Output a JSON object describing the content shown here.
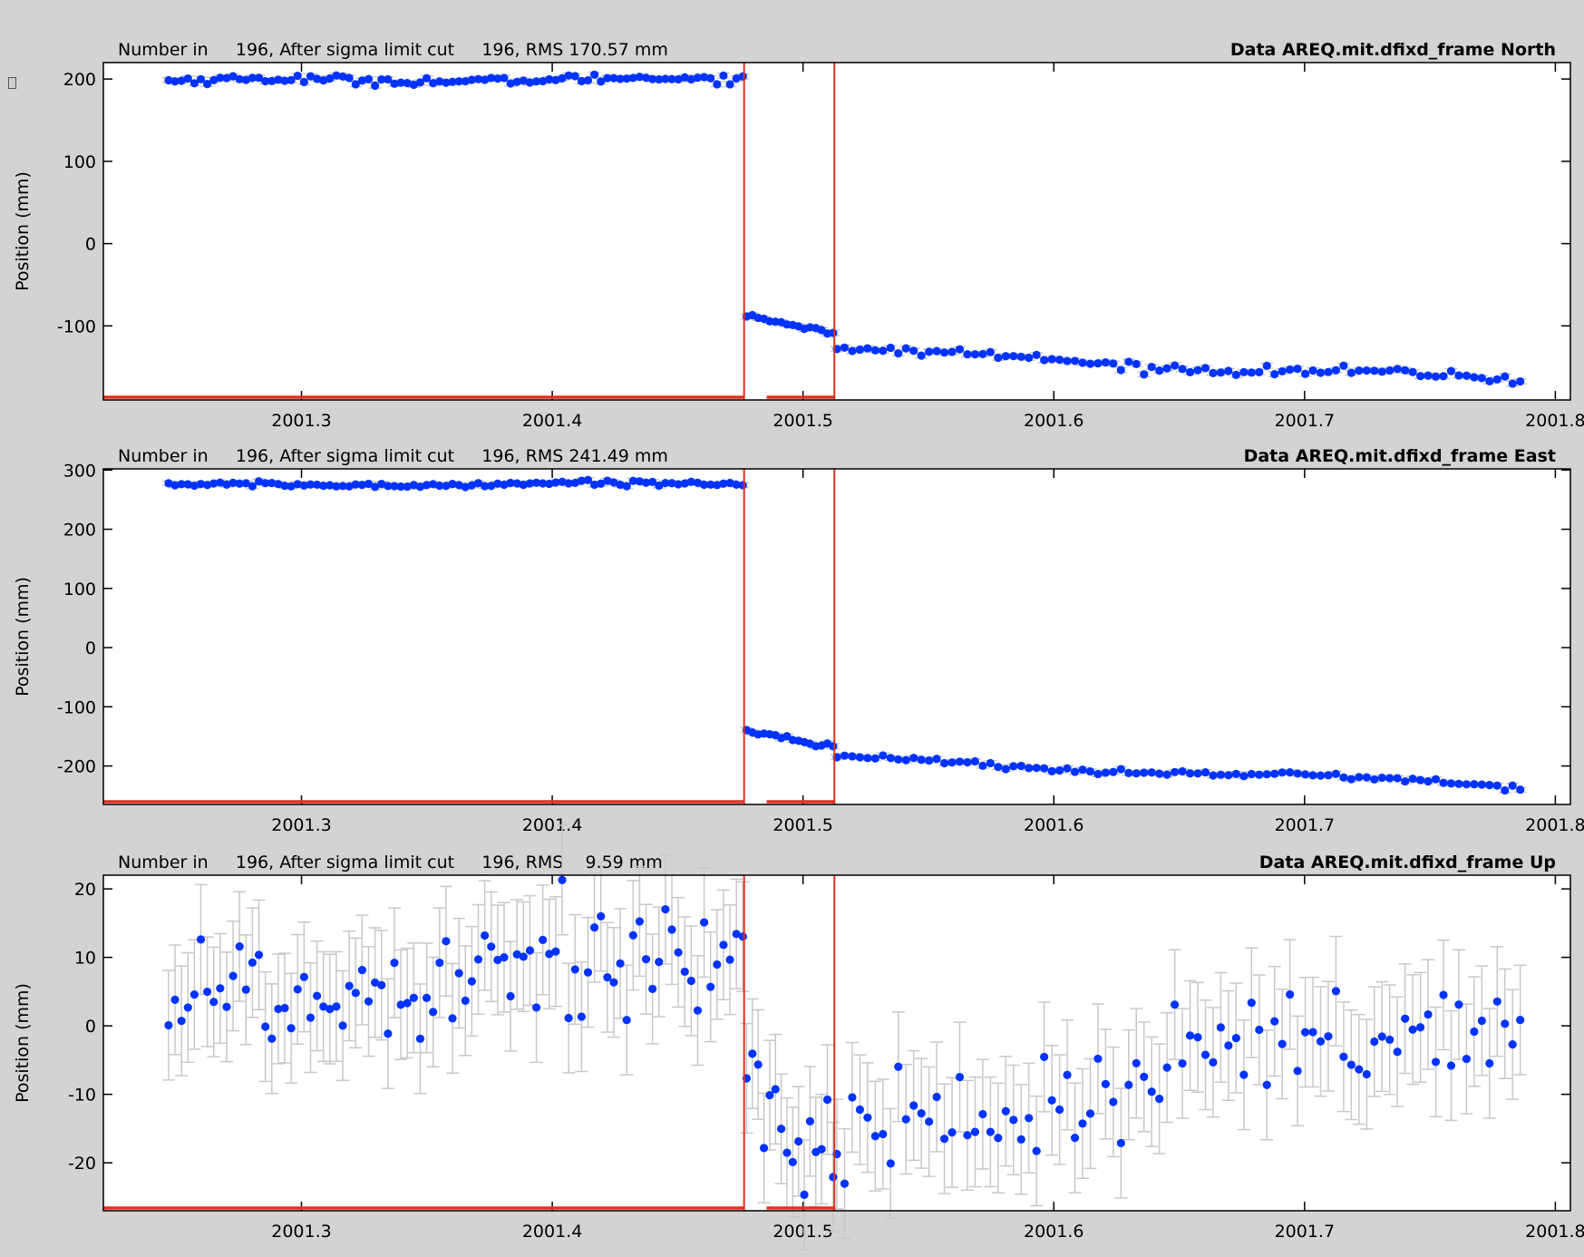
{
  "theme": {
    "background": "#d3d3d3",
    "plot_background": "#ffffff",
    "point_color": "#0033ff",
    "errorbar_color": "#c8c8c8",
    "break_line_color": "#e03020"
  },
  "window": {
    "handle_icon": "resize-handle-icon"
  },
  "chart_data": [
    {
      "type": "scatter",
      "component": "North",
      "title": "Data AREQ.mit.dfixd_frame North",
      "info_text": "Number in     196, After sigma limit cut     196, RMS 170.57 mm",
      "ylabel": "Position (mm)",
      "xlabel": "",
      "xlim": [
        2001.221,
        2001.806
      ],
      "ylim": [
        -190,
        220
      ],
      "y_ticks": [
        200,
        100,
        0,
        -100
      ],
      "x_ticks": [
        2001.3,
        2001.4,
        2001.5,
        2001.6,
        2001.7,
        2001.8
      ],
      "x_tick_labels": [
        "2001.3",
        "2001.4",
        "2001.5",
        "2001.6",
        "2001.7",
        "2001.8"
      ],
      "breaks": [
        2001.4765,
        2001.5125
      ],
      "segment_bars": [
        [
          2001.221,
          2001.4765
        ],
        [
          2001.4855,
          2001.5125
        ]
      ],
      "n_points": 196,
      "errorbar": 3,
      "segments": [
        {
          "x_start": 2001.247,
          "x_end": 2001.476,
          "n": 90,
          "y_start": 198,
          "y_end": 200,
          "noise": 2.5,
          "wave_amp": 2
        },
        {
          "x_start": 2001.4775,
          "x_end": 2001.512,
          "n": 16,
          "y_start": -88,
          "y_end": -107,
          "noise": 2,
          "wave_amp": 0
        },
        {
          "x_start": 2001.5135,
          "x_end": 2001.786,
          "n": 90,
          "y_start": -130,
          "y_end": -167,
          "noise": 2.5,
          "wave_amp": 4
        }
      ]
    },
    {
      "type": "scatter",
      "component": "East",
      "title": "Data AREQ.mit.dfixd_frame East",
      "info_text": "Number in     196, After sigma limit cut     196, RMS 241.49 mm",
      "ylabel": "Position (mm)",
      "xlabel": "",
      "xlim": [
        2001.221,
        2001.806
      ],
      "ylim": [
        -265,
        302
      ],
      "y_ticks": [
        300,
        200,
        100,
        0,
        -100,
        -200
      ],
      "x_ticks": [
        2001.3,
        2001.4,
        2001.5,
        2001.6,
        2001.7,
        2001.8
      ],
      "x_tick_labels": [
        "2001.3",
        "2001.4",
        "2001.5",
        "2001.6",
        "2001.7",
        "2001.8"
      ],
      "breaks": [
        2001.4765,
        2001.5125
      ],
      "segment_bars": [
        [
          2001.221,
          2001.4765
        ],
        [
          2001.4855,
          2001.5125
        ]
      ],
      "n_points": 196,
      "errorbar": 4,
      "segments": [
        {
          "x_start": 2001.247,
          "x_end": 2001.476,
          "n": 90,
          "y_start": 274,
          "y_end": 278,
          "noise": 2,
          "wave_amp": 2
        },
        {
          "x_start": 2001.4775,
          "x_end": 2001.512,
          "n": 16,
          "y_start": -140,
          "y_end": -167,
          "noise": 2,
          "wave_amp": 0
        },
        {
          "x_start": 2001.5135,
          "x_end": 2001.786,
          "n": 90,
          "y_start": -188,
          "y_end": -233,
          "noise": 2.5,
          "wave_amp": 4
        }
      ]
    },
    {
      "type": "scatter",
      "component": "Up",
      "title": "Data AREQ.mit.dfixd_frame Up",
      "info_text": "Number in     196, After sigma limit cut     196, RMS    9.59 mm",
      "ylabel": "Position (mm)",
      "xlabel": "",
      "xlim": [
        2001.221,
        2001.806
      ],
      "ylim": [
        -27,
        22
      ],
      "y_ticks": [
        20,
        10,
        0,
        -10,
        -20
      ],
      "x_ticks": [
        2001.3,
        2001.4,
        2001.5,
        2001.6,
        2001.7,
        2001.8
      ],
      "x_tick_labels": [
        "2001.3",
        "2001.4",
        "2001.5",
        "2001.6",
        "2001.7",
        "2001.8"
      ],
      "breaks": [
        2001.4765,
        2001.5125
      ],
      "segment_bars": [
        [
          2001.221,
          2001.4765
        ],
        [
          2001.4855,
          2001.5125
        ]
      ],
      "n_points": 196,
      "errorbar": 8,
      "segments": [
        {
          "x_start": 2001.247,
          "x_end": 2001.476,
          "n": 90,
          "y_start": 4,
          "y_end": 12,
          "noise": 5,
          "wave_amp": 2
        },
        {
          "x_start": 2001.4775,
          "x_end": 2001.512,
          "n": 16,
          "y_start": -17,
          "y_end": -15,
          "noise": 5,
          "wave_amp": 0
        },
        {
          "x_start": 2001.5135,
          "x_end": 2001.786,
          "n": 90,
          "y_start": -15,
          "y_end": 0,
          "noise": 4.5,
          "wave_amp": 2
        }
      ]
    }
  ]
}
